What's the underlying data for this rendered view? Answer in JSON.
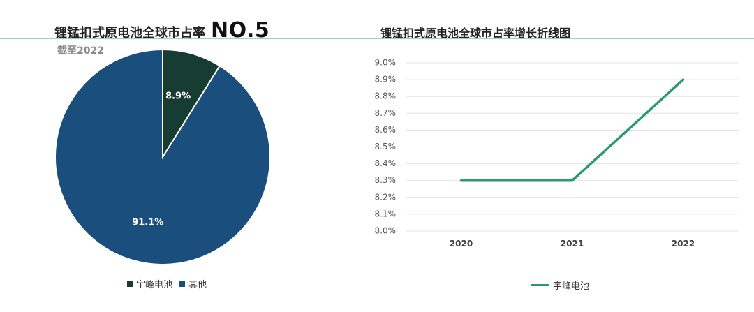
{
  "left_chart": {
    "title": "锂锰扣式原电池全球市占率",
    "highlight": "NO.5",
    "subtitle": "截至2022"
  },
  "right_chart": {
    "title": "锂锰扣式原电池全球市占率增长折线图"
  },
  "colors": {
    "pie_yufeng": "#173d33",
    "pie_other": "#1a4f7d",
    "line": "#2b9a6e",
    "grid": "#e3e3e3",
    "divider": "#9dd2c6"
  },
  "chart_data": [
    {
      "type": "pie",
      "slices": [
        {
          "label": "宇峰电池",
          "value": 8.9,
          "display": "8.9%"
        },
        {
          "label": "其他",
          "value": 91.1,
          "display": "91.1%"
        }
      ],
      "legend_position": "bottom"
    },
    {
      "type": "line",
      "categories": [
        "2020",
        "2021",
        "2022"
      ],
      "series": [
        {
          "name": "宇峰电池",
          "values": [
            8.3,
            8.3,
            8.9
          ]
        }
      ],
      "yticks": [
        "9.0%",
        "8.9%",
        "8.8%",
        "8.7%",
        "8.6%",
        "8.5%",
        "8.4%",
        "8.3%",
        "8.2%",
        "8.1%",
        "8.0%"
      ],
      "ylim": [
        8.0,
        9.0
      ],
      "grid": true,
      "legend_position": "bottom"
    }
  ]
}
